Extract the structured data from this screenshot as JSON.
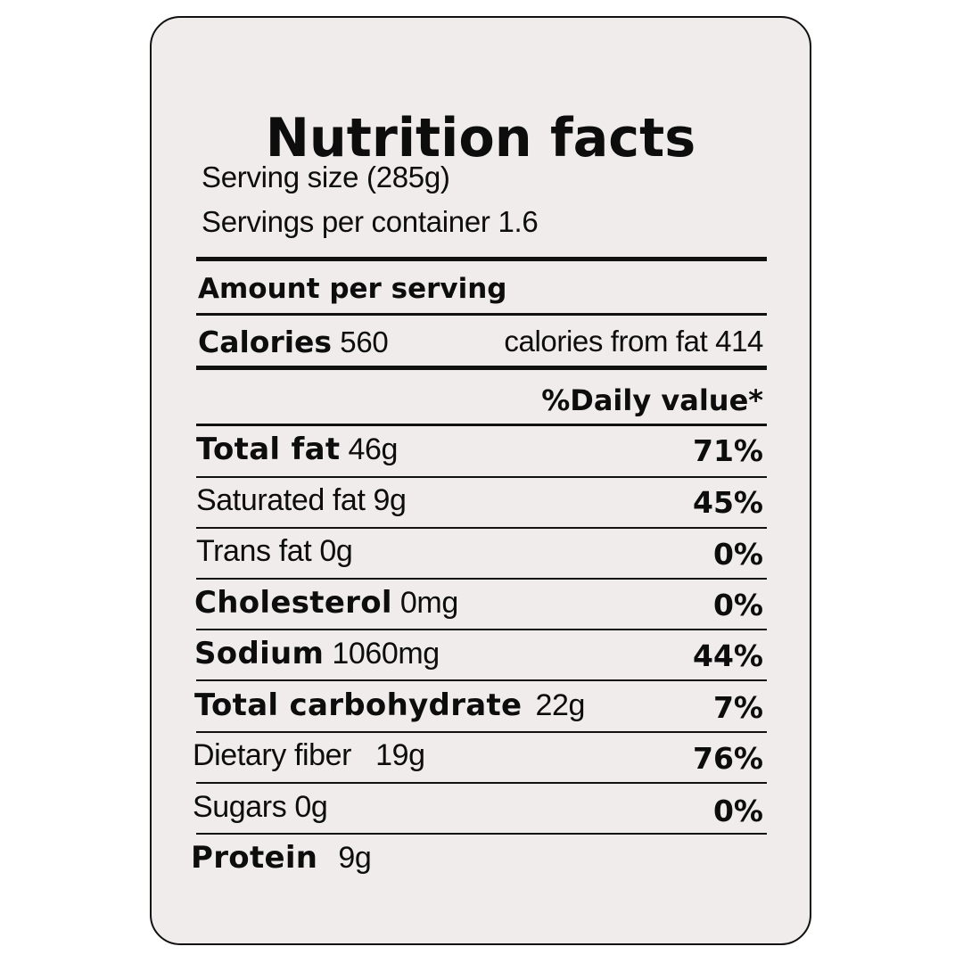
{
  "label": {
    "title": "Nutrition facts",
    "serving_size": "Serving size (285g)",
    "servings_per_container": "Servings per container 1.6",
    "amount_per_serving": "Amount per serving",
    "calories_label": "Calories",
    "calories_value": "560",
    "calories_from_fat": "calories from fat 414",
    "daily_value_header": "%Daily value*"
  },
  "nutrients": [
    {
      "name": "Total fat",
      "amount": "46g",
      "dv": "71%"
    },
    {
      "name": "Saturated fat",
      "amount": "9g",
      "dv": "45%"
    },
    {
      "name": "Trans fat",
      "amount": "0g",
      "dv": "0%"
    },
    {
      "name": "Cholesterol",
      "amount": "0mg",
      "dv": "0%"
    },
    {
      "name": "Sodium",
      "amount": "1060mg",
      "dv": "44%"
    },
    {
      "name": "Total carbohydrate",
      "amount": "22g",
      "dv": "7%"
    },
    {
      "name": "Dietary fiber",
      "amount": "19g",
      "dv": "76%"
    },
    {
      "name": "Sugars",
      "amount": "0g",
      "dv": "0%"
    },
    {
      "name": "Protein",
      "amount": "9g",
      "dv": ""
    }
  ],
  "colors": {
    "panel_background": "#f0ecec",
    "ink": "#0d0d0d",
    "page_background": "#ffffff"
  }
}
